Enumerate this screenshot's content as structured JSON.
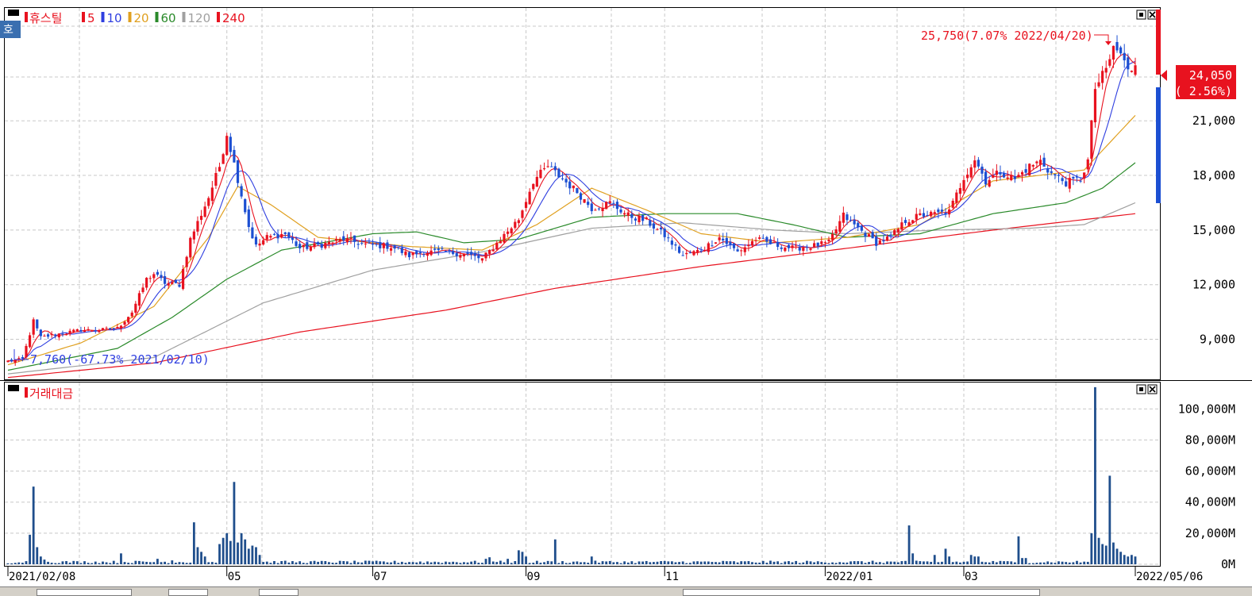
{
  "colors": {
    "up": "#e8121f",
    "down": "#1c4fd2",
    "ma5": "#e8121f",
    "ma10": "#2f3fe0",
    "ma20": "#e0a020",
    "ma60": "#2a8a2a",
    "ma120": "#a0a0a0",
    "ma240": "#e8121f",
    "volume": "#1f4e8c",
    "current_price_bg": "#e8121f",
    "grid": "#c8c8c8",
    "corner_badge": "#3a6fb0"
  },
  "price_panel": {
    "icon": "window-control-icon",
    "corner_badge": "호",
    "stock_name": "휴스틸",
    "ma_legend": [
      {
        "label": "5",
        "color": "#e8121f"
      },
      {
        "label": "10",
        "color": "#2f3fe0"
      },
      {
        "label": "20",
        "color": "#e0a020"
      },
      {
        "label": "60",
        "color": "#2a8a2a"
      },
      {
        "label": "120",
        "color": "#a0a0a0"
      },
      {
        "label": "240",
        "color": "#e8121f"
      }
    ],
    "high_annotation": "25,750(7.07% 2022/04/20)",
    "low_annotation": "7,760(-67.73% 2021/02/10)",
    "current_price": "24,050",
    "current_change": "( 2.56%)"
  },
  "volume_panel": {
    "title": "거래대금"
  },
  "date_labels": [
    {
      "text": "2021/02/08",
      "index": 0
    },
    {
      "text": "05",
      "index": 60
    },
    {
      "text": "07",
      "index": 100
    },
    {
      "text": "09",
      "index": 142
    },
    {
      "text": "11",
      "index": 180
    },
    {
      "text": "2022/01",
      "index": 224
    },
    {
      "text": "03",
      "index": 262
    },
    {
      "text": "2022/05/06",
      "index": 309
    }
  ],
  "chart_data": [
    {
      "type": "candlestick",
      "title": "휴스틸",
      "x_range": [
        "2021/02/08",
        "2022/05/06"
      ],
      "y_ticks": [
        "9,000",
        "12,000",
        "15,000",
        "18,000",
        "21,000"
      ],
      "ylim": [
        6800,
        27200
      ],
      "grid": true,
      "series": [
        {
          "name": "5",
          "kind": "moving-average"
        },
        {
          "name": "10",
          "kind": "moving-average"
        },
        {
          "name": "20",
          "kind": "moving-average"
        },
        {
          "name": "60",
          "kind": "moving-average"
        },
        {
          "name": "120",
          "kind": "moving-average"
        },
        {
          "name": "240",
          "kind": "moving-average"
        }
      ],
      "close_keypoints": [
        [
          0,
          7800
        ],
        [
          4,
          7900
        ],
        [
          7,
          10000
        ],
        [
          9,
          9100
        ],
        [
          14,
          9300
        ],
        [
          20,
          9500
        ],
        [
          25,
          9500
        ],
        [
          30,
          9600
        ],
        [
          34,
          10500
        ],
        [
          38,
          12300
        ],
        [
          40,
          12600
        ],
        [
          43,
          12100
        ],
        [
          47,
          12000
        ],
        [
          50,
          14500
        ],
        [
          55,
          16800
        ],
        [
          58,
          18500
        ],
        [
          60,
          20300
        ],
        [
          63,
          17800
        ],
        [
          66,
          15200
        ],
        [
          68,
          14100
        ],
        [
          71,
          14600
        ],
        [
          76,
          14800
        ],
        [
          80,
          14000
        ],
        [
          86,
          14200
        ],
        [
          92,
          14500
        ],
        [
          98,
          14200
        ],
        [
          105,
          14100
        ],
        [
          110,
          13600
        ],
        [
          114,
          13800
        ],
        [
          119,
          13800
        ],
        [
          125,
          13700
        ],
        [
          130,
          13400
        ],
        [
          135,
          14500
        ],
        [
          140,
          15600
        ],
        [
          144,
          17700
        ],
        [
          148,
          18500
        ],
        [
          152,
          17800
        ],
        [
          156,
          17100
        ],
        [
          160,
          16200
        ],
        [
          165,
          16500
        ],
        [
          170,
          15800
        ],
        [
          175,
          15500
        ],
        [
          180,
          14700
        ],
        [
          185,
          13600
        ],
        [
          190,
          13900
        ],
        [
          195,
          14600
        ],
        [
          200,
          13800
        ],
        [
          205,
          14500
        ],
        [
          210,
          14200
        ],
        [
          215,
          14000
        ],
        [
          220,
          14100
        ],
        [
          225,
          14300
        ],
        [
          229,
          15800
        ],
        [
          233,
          15100
        ],
        [
          238,
          14300
        ],
        [
          242,
          14600
        ],
        [
          246,
          15500
        ],
        [
          250,
          15800
        ],
        [
          255,
          15900
        ],
        [
          258,
          16000
        ],
        [
          262,
          17900
        ],
        [
          265,
          18900
        ],
        [
          268,
          17700
        ],
        [
          272,
          18200
        ],
        [
          276,
          17800
        ],
        [
          280,
          18500
        ],
        [
          283,
          18800
        ],
        [
          286,
          18100
        ],
        [
          290,
          17600
        ],
        [
          294,
          17800
        ],
        [
          296,
          18800
        ],
        [
          298,
          22800
        ],
        [
          301,
          23800
        ],
        [
          303,
          25000
        ],
        [
          305,
          24700
        ],
        [
          307,
          23700
        ],
        [
          309,
          24050
        ]
      ],
      "ma_keypoints": {
        "20": [
          [
            0,
            7600
          ],
          [
            20,
            8800
          ],
          [
            40,
            10800
          ],
          [
            55,
            14600
          ],
          [
            63,
            17400
          ],
          [
            72,
            16400
          ],
          [
            85,
            14600
          ],
          [
            110,
            14100
          ],
          [
            130,
            13900
          ],
          [
            145,
            15300
          ],
          [
            160,
            17300
          ],
          [
            175,
            16100
          ],
          [
            190,
            14800
          ],
          [
            210,
            14300
          ],
          [
            230,
            14600
          ],
          [
            250,
            15300
          ],
          [
            270,
            17700
          ],
          [
            295,
            18300
          ],
          [
            309,
            21300
          ]
        ],
        "60": [
          [
            0,
            7300
          ],
          [
            30,
            8500
          ],
          [
            45,
            10200
          ],
          [
            60,
            12300
          ],
          [
            75,
            13900
          ],
          [
            100,
            14800
          ],
          [
            112,
            14900
          ],
          [
            125,
            14300
          ],
          [
            140,
            14500
          ],
          [
            160,
            15700
          ],
          [
            180,
            15900
          ],
          [
            200,
            15900
          ],
          [
            215,
            15300
          ],
          [
            230,
            14600
          ],
          [
            250,
            14800
          ],
          [
            270,
            15900
          ],
          [
            290,
            16500
          ],
          [
            300,
            17300
          ],
          [
            309,
            18700
          ]
        ],
        "120": [
          [
            0,
            7100
          ],
          [
            40,
            8000
          ],
          [
            55,
            9500
          ],
          [
            70,
            11000
          ],
          [
            100,
            12800
          ],
          [
            130,
            13800
          ],
          [
            160,
            15100
          ],
          [
            185,
            15400
          ],
          [
            210,
            15000
          ],
          [
            230,
            14800
          ],
          [
            255,
            15000
          ],
          [
            280,
            15100
          ],
          [
            295,
            15300
          ],
          [
            309,
            16500
          ]
        ],
        "240": [
          [
            0,
            6900
          ],
          [
            40,
            7700
          ],
          [
            80,
            9400
          ],
          [
            120,
            10600
          ],
          [
            150,
            11800
          ],
          [
            190,
            13000
          ],
          [
            230,
            14000
          ],
          [
            270,
            15000
          ],
          [
            309,
            15900
          ]
        ]
      },
      "high": {
        "value": 25750,
        "date": "2022/04/20",
        "pct": 7.07
      },
      "low": {
        "value": 7760,
        "date": "2021/02/10",
        "pct": -67.73
      },
      "current": {
        "value": 24050,
        "pct": 2.56
      }
    },
    {
      "type": "bar",
      "title": "거래대금",
      "y_ticks": [
        "0M",
        "20,000M",
        "40,000M",
        "60,000M",
        "80,000M",
        "100,000M"
      ],
      "ylim": [
        0,
        117000
      ],
      "unit": "M",
      "spikes": [
        [
          0,
          600
        ],
        [
          1,
          600
        ],
        [
          2,
          900
        ],
        [
          3,
          1200
        ],
        [
          4,
          1000
        ],
        [
          5,
          2000
        ],
        [
          6,
          19000
        ],
        [
          7,
          50000
        ],
        [
          8,
          11000
        ],
        [
          9,
          5000
        ],
        [
          10,
          3000
        ],
        [
          31,
          7000
        ],
        [
          41,
          3500
        ],
        [
          45,
          2500
        ],
        [
          51,
          27000
        ],
        [
          52,
          11000
        ],
        [
          53,
          8000
        ],
        [
          54,
          5000
        ],
        [
          58,
          13000
        ],
        [
          59,
          17000
        ],
        [
          60,
          20000
        ],
        [
          61,
          15000
        ],
        [
          62,
          53000
        ],
        [
          63,
          14000
        ],
        [
          64,
          20000
        ],
        [
          65,
          16000
        ],
        [
          66,
          10000
        ],
        [
          67,
          12000
        ],
        [
          68,
          11000
        ],
        [
          69,
          6000
        ],
        [
          131,
          3500
        ],
        [
          132,
          4500
        ],
        [
          137,
          3500
        ],
        [
          140,
          9000
        ],
        [
          141,
          8000
        ],
        [
          142,
          5000
        ],
        [
          150,
          16000
        ],
        [
          160,
          5000
        ],
        [
          247,
          25000
        ],
        [
          248,
          7000
        ],
        [
          254,
          6000
        ],
        [
          257,
          10000
        ],
        [
          258,
          5000
        ],
        [
          264,
          6000
        ],
        [
          265,
          5000
        ],
        [
          266,
          5000
        ],
        [
          277,
          18000
        ],
        [
          278,
          4000
        ],
        [
          279,
          4000
        ],
        [
          297,
          20000
        ],
        [
          298,
          114000
        ],
        [
          299,
          17000
        ],
        [
          300,
          13000
        ],
        [
          301,
          12000
        ],
        [
          302,
          57000
        ],
        [
          303,
          14000
        ],
        [
          304,
          10000
        ],
        [
          305,
          8000
        ],
        [
          306,
          6000
        ],
        [
          307,
          5000
        ],
        [
          308,
          6000
        ],
        [
          309,
          5000
        ]
      ]
    }
  ]
}
